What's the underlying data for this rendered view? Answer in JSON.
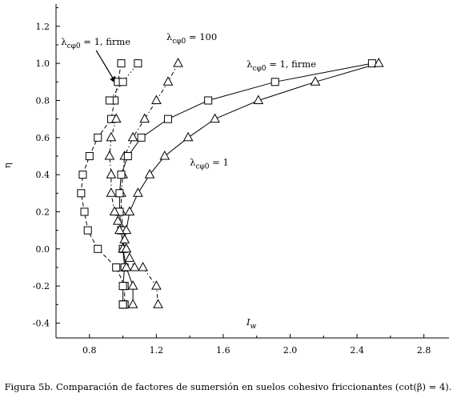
{
  "chart_data": {
    "type": "line",
    "title": "",
    "xlabel": "I",
    "xlabel_sub": "w",
    "ylabel": "η",
    "caption": "Figura 5b. Comparación de factores de sumersión en suelos cohesivo friccionantes (cot(β) = 4).",
    "xlim": [
      0.6,
      2.95
    ],
    "ylim": [
      -0.48,
      1.32
    ],
    "xticks": [
      0.8,
      1.2,
      1.6,
      2.0,
      2.4,
      2.8
    ],
    "xtick_labels": [
      "0.8",
      "1.2",
      "1.6",
      "2.0",
      "2.4",
      "2.8"
    ],
    "yticks": [
      -0.4,
      -0.2,
      0.0,
      0.2,
      0.4,
      0.6,
      0.8,
      1.0,
      1.2
    ],
    "ytick_labels": [
      "-0.4",
      "-0.2",
      "0.0",
      "0.2",
      "0.4",
      "0.6",
      "0.8",
      "1.0",
      "1.2"
    ],
    "grid": false,
    "series": [
      {
        "label_prefix": "λ",
        "label_sub": "cφ0",
        "label_suffix": " = 1, firme",
        "marker": "square",
        "line": "dashed",
        "curve_only": false,
        "x": [
          0.99,
          0.97,
          0.95,
          0.93,
          0.85,
          0.8,
          0.76,
          0.75,
          0.77,
          0.79,
          0.85,
          0.96,
          1.01,
          1.01,
          1.0,
          1.0
        ],
        "y": [
          1.0,
          0.9,
          0.8,
          0.7,
          0.6,
          0.5,
          0.4,
          0.3,
          0.2,
          0.1,
          0.0,
          -0.1,
          -0.2,
          -0.3,
          -0.3,
          -0.3
        ]
      },
      {
        "label_prefix": "λ",
        "label_sub": "cφ0",
        "label_suffix": " = 100",
        "marker": "triangle",
        "line": "dashdot",
        "curve_only": false,
        "x": [
          1.33,
          1.27,
          1.2,
          1.13,
          1.06,
          1.01,
          1.0,
          0.99,
          0.99,
          1.0,
          1.02,
          1.04,
          1.07,
          1.12,
          1.2,
          1.21
        ],
        "y": [
          1.0,
          0.9,
          0.8,
          0.7,
          0.6,
          0.5,
          0.4,
          0.3,
          0.2,
          0.1,
          0.0,
          -0.05,
          -0.1,
          -0.1,
          -0.2,
          -0.3
        ]
      },
      {
        "label_prefix": "λ",
        "label_sub": "cφ0",
        "label_suffix": " = 1, firme",
        "marker": "square",
        "line": "solid",
        "curve_only": false,
        "x": [
          2.49,
          1.91,
          1.51,
          1.27,
          1.11,
          1.03,
          0.99,
          0.98,
          0.98,
          0.99,
          1.0,
          1.01,
          1.0,
          1.0
        ],
        "y": [
          1.0,
          0.9,
          0.8,
          0.7,
          0.6,
          0.5,
          0.4,
          0.3,
          0.2,
          0.1,
          0.0,
          -0.1,
          -0.2,
          -0.3
        ]
      },
      {
        "label_prefix": "λ",
        "label_sub": "cφ0",
        "label_suffix": " = 1",
        "marker": "triangle",
        "line": "solid",
        "curve_only": false,
        "x": [
          2.53,
          2.15,
          1.81,
          1.55,
          1.39,
          1.25,
          1.16,
          1.09,
          1.04,
          1.02,
          1.0,
          1.02,
          1.06,
          1.06
        ],
        "y": [
          1.0,
          0.9,
          0.8,
          0.7,
          0.6,
          0.5,
          0.4,
          0.3,
          0.2,
          0.1,
          0.0,
          -0.1,
          -0.2,
          -0.3
        ]
      },
      {
        "label_prefix": "",
        "label_sub": "",
        "label_suffix": "",
        "marker": "square",
        "line": "dotted",
        "curve_only": false,
        "x": [
          1.09,
          1.0,
          0.92
        ],
        "y": [
          1.0,
          0.9,
          0.8
        ]
      },
      {
        "label_prefix": "",
        "label_sub": "",
        "label_suffix": "",
        "marker": "triangle",
        "line": "dashdot",
        "curve_only": false,
        "x": [
          0.96,
          0.93,
          0.92,
          0.93,
          0.93,
          0.95,
          0.97,
          0.98,
          1.01,
          1.02
        ],
        "y": [
          0.7,
          0.6,
          0.5,
          0.4,
          0.3,
          0.2,
          0.15,
          0.1,
          0.05,
          0.0
        ]
      }
    ],
    "annotations": [
      {
        "prefix": "λ",
        "sub": "cφ0",
        "suffix": " = 1, firme",
        "x": 0.63,
        "y": 1.1,
        "arrow_to": [
          0.96,
          0.89
        ]
      },
      {
        "prefix": "λ",
        "sub": "cφ0",
        "suffix": " = 100",
        "x": 1.26,
        "y": 1.125
      },
      {
        "prefix": "λ",
        "sub": "cφ0",
        "suffix": " = 1, firme",
        "x": 1.74,
        "y": 0.98
      },
      {
        "prefix": "λ",
        "sub": "cφ0",
        "suffix": " = 1",
        "x": 1.4,
        "y": 0.45
      }
    ]
  }
}
